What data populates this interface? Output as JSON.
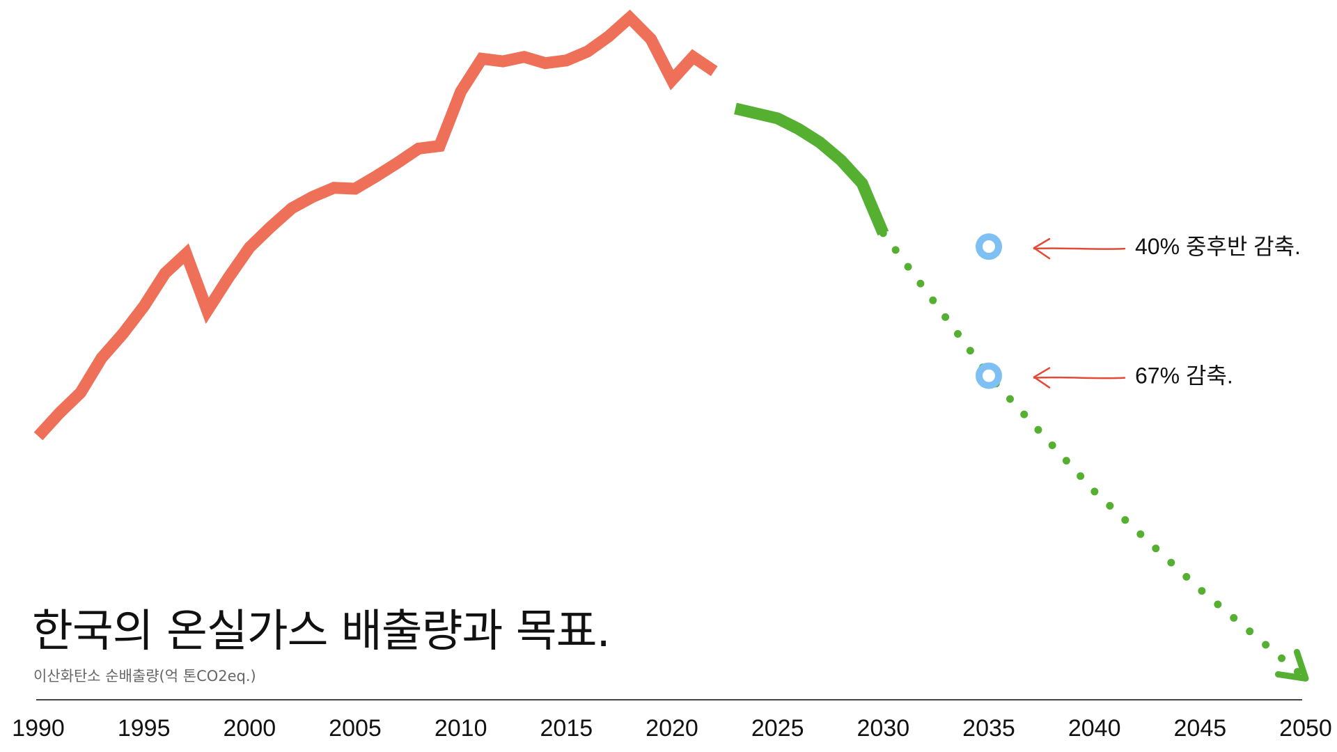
{
  "title": "한국의 온실가스 배출량과 목표.",
  "subtitle": "이산화탄소 순배출량(억 톤CO2eq.)",
  "colors": {
    "historical": "#ee7058",
    "target_path": "#55b032",
    "target_dot": "#7ec0f4",
    "arrow": "#e04a36",
    "axis": "#444444"
  },
  "chart_data": {
    "type": "line",
    "title": "한국의 온실가스 배출량과 목표.",
    "ylabel": "이산화탄소 순배출량(억 톤CO2eq.)",
    "xlabel": "",
    "xlim": [
      1990,
      2050
    ],
    "ylim": [
      0,
      7.6
    ],
    "grid": false,
    "x_ticks": [
      "1990",
      "1995",
      "2000",
      "2005",
      "2010",
      "2015",
      "2020",
      "2025",
      "2030",
      "2035",
      "2040",
      "2045",
      "2050"
    ],
    "series": [
      {
        "style": "solid",
        "color": "#ee7058",
        "x": [
          1990,
          1991,
          1992,
          1993,
          1994,
          1995,
          1996,
          1997,
          1998,
          1999,
          2000,
          2001,
          2002,
          2003,
          2004,
          2005,
          2006,
          2007,
          2008,
          2009,
          2010,
          2011,
          2012,
          2013,
          2014,
          2015,
          2016,
          2017,
          2018,
          2019,
          2020,
          2021,
          2022
        ],
        "y": [
          2.92,
          3.18,
          3.41,
          3.8,
          4.07,
          4.38,
          4.75,
          4.97,
          4.33,
          4.7,
          5.04,
          5.27,
          5.48,
          5.61,
          5.71,
          5.7,
          5.84,
          5.99,
          6.15,
          6.18,
          6.79,
          7.16,
          7.13,
          7.18,
          7.11,
          7.14,
          7.24,
          7.41,
          7.62,
          7.38,
          6.92,
          7.18,
          7.02
        ]
      },
      {
        "style": "solid",
        "color": "#55b032",
        "x": [
          2023,
          2025,
          2026,
          2027,
          2028,
          2029,
          2030
        ],
        "y": [
          6.6,
          6.49,
          6.37,
          6.22,
          6.02,
          5.76,
          5.2
        ]
      },
      {
        "style": "dotted",
        "color": "#55b032",
        "x": [
          2030,
          2035,
          2040,
          2045,
          2050
        ],
        "y": [
          5.2,
          3.6,
          2.3,
          1.2,
          0.2
        ]
      }
    ],
    "targets": [
      {
        "year": 2035,
        "y": 5.05,
        "label": "40% 중후반 감축."
      },
      {
        "year": 2035,
        "y": 3.6,
        "label": "67% 감축."
      }
    ]
  }
}
